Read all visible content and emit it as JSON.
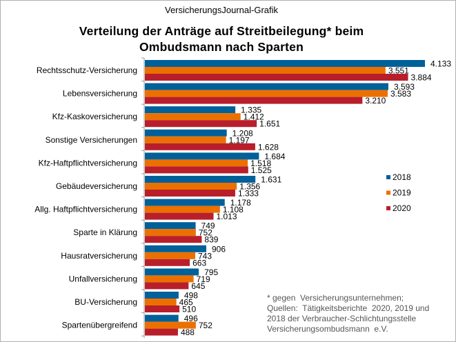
{
  "source": "VersicherungsJournal-Grafik",
  "title_line1": "Verteilung der Anträge auf Streitbeilegung*  beim",
  "title_line2": "Ombudsmann  nach Sparten",
  "footnote": [
    "* gegen  Versicherungsunternehmen;",
    "Quellen:  Tätigkeitsberichte  2020, 2019 und",
    "2018 der Verbraucher-Schlichtungsstelle",
    "Versicherungsombudsmann  e.V."
  ],
  "chart_data": {
    "type": "bar",
    "orientation": "horizontal",
    "title": "Verteilung der Anträge auf Streitbeilegung* beim Ombudsmann nach Sparten",
    "categories": [
      "Rechtsschutz-Versicherung",
      "Lebensversicherung",
      "Kfz-Kaskoversicherung",
      "Sonstige Versicherungen",
      "Kfz-Haftpflichtversicherung",
      "Gebäudeversicherung",
      "Allg. Haftpflichtversicherung",
      "Sparte in Klärung",
      "Hausratversicherung",
      "Unfallversicherung",
      "BU-Versicherung",
      "Spartenübergreifend"
    ],
    "series": [
      {
        "name": "2018",
        "color": "#00609a",
        "values": [
          4133,
          3593,
          1335,
          1208,
          1684,
          1631,
          1178,
          749,
          906,
          795,
          498,
          496
        ],
        "labels": [
          "4.133",
          "3.593",
          "1.335",
          "1.208",
          "1.684",
          "1.631",
          "1.178",
          "749",
          "906",
          "795",
          "498",
          "496"
        ]
      },
      {
        "name": "2019",
        "color": "#ec7000",
        "values": [
          3551,
          3583,
          1412,
          1197,
          1518,
          1356,
          1108,
          752,
          743,
          719,
          465,
          752
        ],
        "labels": [
          "3.551",
          "3.583",
          "1.412",
          "1.197",
          "1.518",
          "1.356",
          "1.108",
          "752",
          "743",
          "719",
          "465",
          "752"
        ]
      },
      {
        "name": "2020",
        "color": "#b81f2b",
        "values": [
          3884,
          3210,
          1651,
          1628,
          1525,
          1333,
          1013,
          839,
          663,
          645,
          510,
          488
        ],
        "labels": [
          "3.884",
          "3.210",
          "1.651",
          "1.628",
          "1.525",
          "1.333",
          "1.013",
          "839",
          "663",
          "645",
          "510",
          "488"
        ]
      }
    ],
    "xlabel": "",
    "ylabel": "",
    "grid": false,
    "legend": "right"
  }
}
